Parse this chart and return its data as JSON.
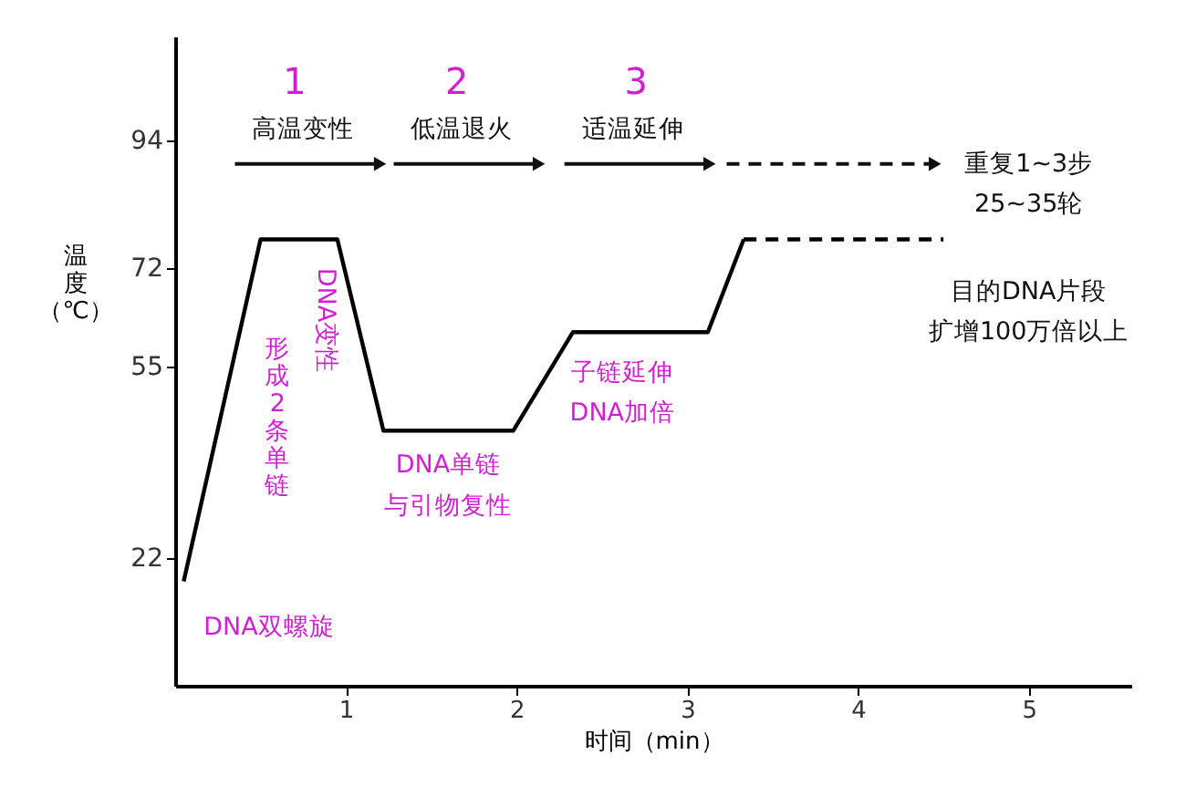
{
  "chart_data": {
    "type": "line",
    "xlabel": "时间（min）",
    "ylabel": "温度（℃）",
    "xlim": [
      0,
      5.6
    ],
    "xticks": [
      1,
      2,
      3,
      4,
      5
    ],
    "ylim": [
      0,
      112
    ],
    "yticks": [
      22,
      55,
      72,
      94
    ],
    "grid": false,
    "marker": "none",
    "series": [
      {
        "x": [
          0.05,
          0.5,
          0.95,
          1.22,
          1.98,
          2.33,
          3.12,
          3.33
        ],
        "values": [
          18,
          77,
          77,
          44,
          44,
          61,
          61,
          77
        ],
        "color": "#000000",
        "line_style": "solid"
      },
      {
        "x": [
          3.33,
          4.5
        ],
        "values": [
          77,
          77
        ],
        "color": "#000000",
        "line_style": "dashed"
      }
    ],
    "annotations": [
      "1",
      "2",
      "3",
      "高温变性",
      "低温退火",
      "适温延伸",
      "重复1~3步",
      "25~35轮",
      "目的DNA片段",
      "扩增100万倍以上",
      "形成2条单链",
      "DNA变性",
      "DNA单链",
      "与引物复性",
      "子链延伸",
      "DNA加倍",
      "DNA双螺旋"
    ]
  }
}
